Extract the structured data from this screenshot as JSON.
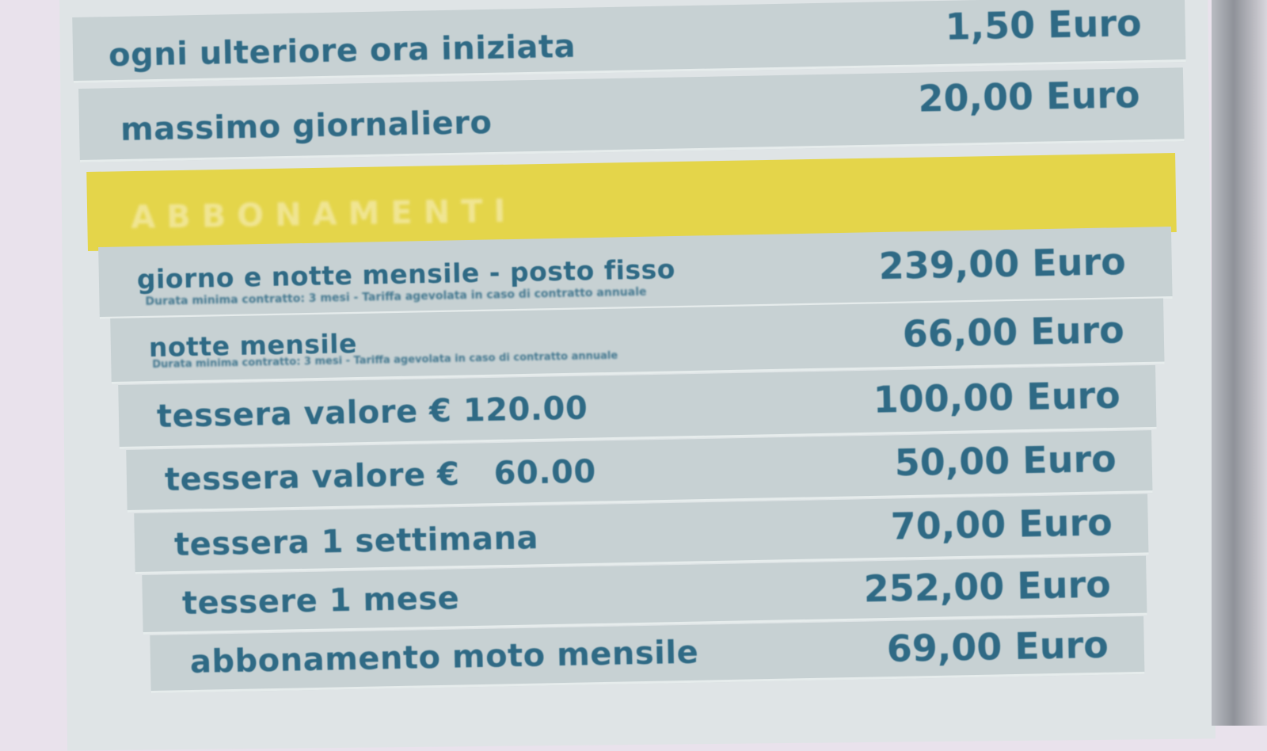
{
  "sign": {
    "rows_top": [
      {
        "label": "ogni ulteriore ora iniziata",
        "price": "1,50 Euro"
      },
      {
        "label": "massimo giornaliero",
        "price": "20,00 Euro"
      }
    ],
    "section_header": "ABBONAMENTI",
    "rows": [
      {
        "label": "giorno e notte mensile - posto fisso",
        "note": "Durata minima contratto: 3 mesi - Tariffa agevolata in caso di contratto annuale",
        "price": "239,00 Euro"
      },
      {
        "label": "notte mensile",
        "note": "Durata minima contratto: 3 mesi - Tariffa agevolata in caso di contratto annuale",
        "price": "66,00 Euro"
      },
      {
        "label": "tessera valore € 120.00",
        "price": "100,00 Euro"
      },
      {
        "label": "tessera valore €   60.00",
        "price": "50,00 Euro"
      },
      {
        "label": "tessera 1 settimana",
        "price": "70,00 Euro"
      },
      {
        "label": "tessere 1 mese",
        "price": "252,00 Euro"
      },
      {
        "label": "abbonamento moto mensile",
        "price": "69,00 Euro"
      }
    ],
    "colors": {
      "text": "#2f6a85",
      "row": "#c7d1d3",
      "header": "#e4d54a"
    }
  }
}
